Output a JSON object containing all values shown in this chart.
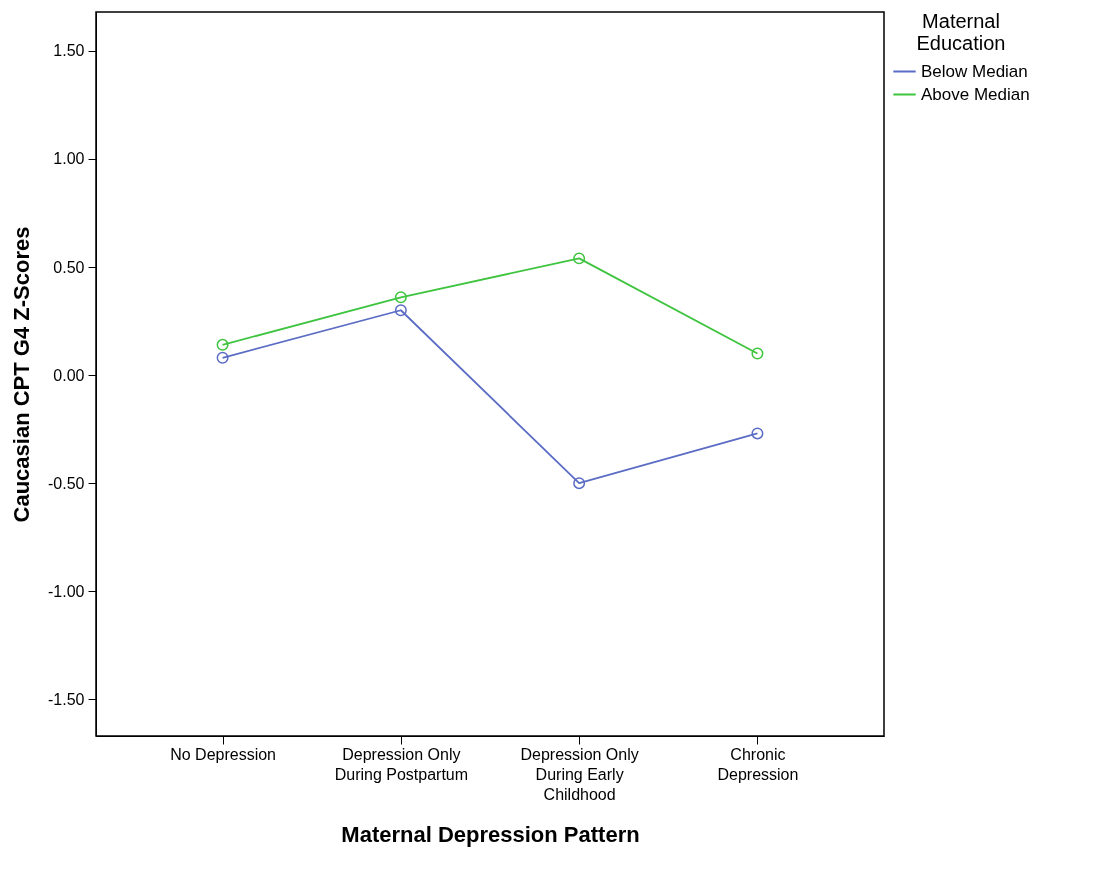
{
  "chart_data": {
    "type": "line",
    "xlabel": "Maternal Depression Pattern",
    "ylabel": "Caucasian CPT G4 Z-Scores",
    "legend_title": "Maternal Education",
    "categories": [
      "No Depression",
      "Depression Only During Postpartum",
      "Depression Only During Early Childhood",
      "Chronic Depression"
    ],
    "series": [
      {
        "name": "Below Median",
        "color": "#5b6cc4",
        "values": [
          0.08,
          0.3,
          -0.5,
          -0.27
        ]
      },
      {
        "name": "Above Median",
        "color": "#3fc43f",
        "values": [
          0.14,
          0.36,
          0.54,
          0.1
        ]
      }
    ],
    "ylim": [
      -1.67,
      1.68
    ],
    "yticks": [
      {
        "value": -1.5,
        "label": "-1.50"
      },
      {
        "value": -1,
        "label": "-1.00"
      },
      {
        "value": -0.5,
        "label": "-0.50"
      },
      {
        "value": 0,
        "label": "0.00"
      },
      {
        "value": 0.5,
        "label": "0.50"
      },
      {
        "value": 1,
        "label": "1.00"
      },
      {
        "value": 1.5,
        "label": "1.50"
      }
    ],
    "grid": false,
    "legend": "top right",
    "marker": "circle",
    "line_style": "solid"
  }
}
